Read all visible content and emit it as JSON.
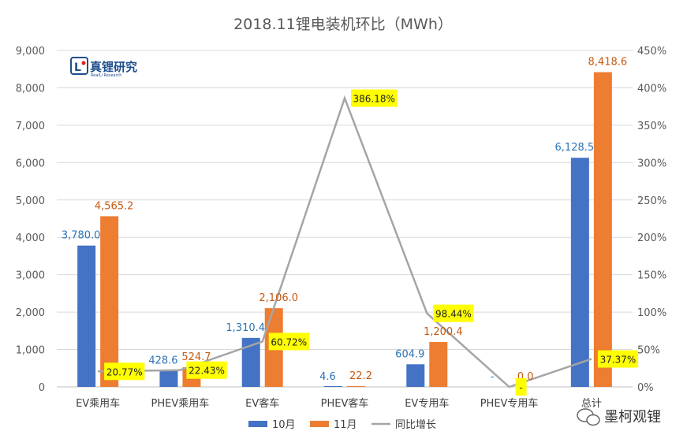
{
  "chart_data": {
    "type": "bar",
    "title": "2018.11锂电装机环比（MWh）",
    "categories": [
      "EV乘用车",
      "PHEV乘用车",
      "EV客车",
      "PHEV客车",
      "EV专用车",
      "PHEV专用车",
      "总计"
    ],
    "series": [
      {
        "name": "10月",
        "type": "bar",
        "axis": "left",
        "color": "#4472C4",
        "values": [
          3780.0,
          428.6,
          1310.4,
          4.6,
          604.9,
          null,
          6128.5
        ],
        "labels": [
          "3,780.0",
          "428.6",
          "1,310.4",
          "4.6",
          "604.9",
          "-",
          "6,128.5"
        ]
      },
      {
        "name": "11月",
        "type": "bar",
        "axis": "left",
        "color": "#ED7D31",
        "values": [
          4565.2,
          524.7,
          2106.0,
          22.2,
          1200.4,
          0.0,
          8418.6
        ],
        "labels": [
          "4,565.2",
          "524.7",
          "2,106.0",
          "22.2",
          "1,200.4",
          "0.0",
          "8,418.6"
        ]
      },
      {
        "name": "同比增长",
        "type": "line",
        "axis": "right",
        "color": "#A5A5A5",
        "values": [
          20.77,
          22.43,
          60.72,
          386.18,
          98.44,
          0,
          37.37
        ],
        "labels": [
          "20.77%",
          "22.43%",
          "60.72%",
          "386.18%",
          "98.44%",
          "-",
          "37.37%"
        ]
      }
    ],
    "y_left": {
      "min": 0,
      "max": 9000,
      "ticks": [
        "0",
        "1,000",
        "2,000",
        "3,000",
        "4,000",
        "5,000",
        "6,000",
        "7,000",
        "8,000",
        "9,000"
      ]
    },
    "y_right": {
      "min": 0,
      "max": 450,
      "ticks": [
        "0%",
        "50%",
        "100%",
        "150%",
        "200%",
        "250%",
        "300%",
        "350%",
        "400%",
        "450%"
      ]
    },
    "grid": true,
    "legend_position": "bottom",
    "label_highlight_color": "#FFFF00"
  },
  "logo": {
    "text": "真锂研究",
    "sub": "RealLi Research"
  },
  "watermark": {
    "text": "墨柯观锂"
  }
}
